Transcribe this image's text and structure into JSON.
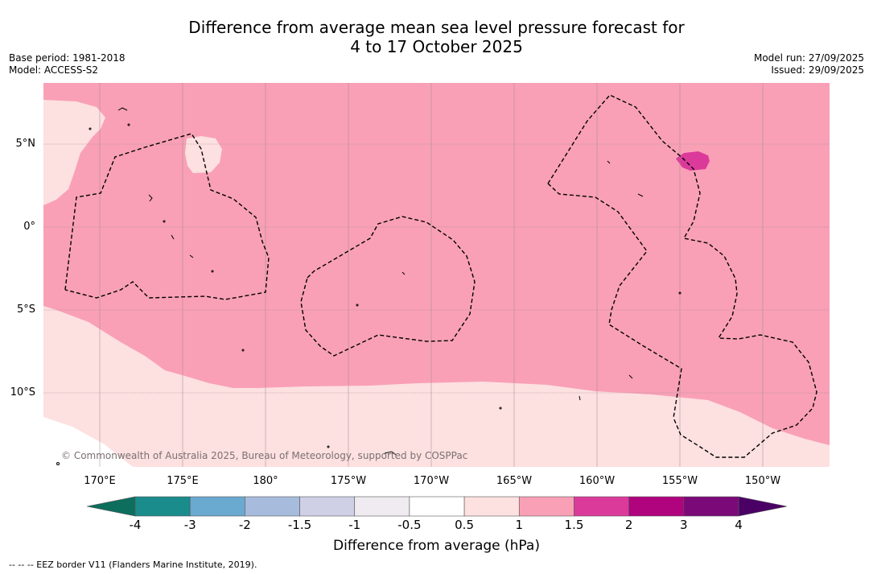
{
  "title": {
    "line1": "Difference from average mean sea level pressure forecast for",
    "line2": "4 to 17 October 2025"
  },
  "meta": {
    "base_period": "Base period: 1981-2018",
    "model": "Model: ACCESS-S2",
    "model_run": "Model run: 27/09/2025",
    "issued": "Issued: 29/09/2025"
  },
  "map": {
    "lat_labels": [
      "5°N",
      "0°",
      "5°S",
      "10°S"
    ],
    "lon_labels": [
      "170°E",
      "175°E",
      "180°",
      "175°W",
      "170°W",
      "165°W",
      "160°W",
      "155°W",
      "150°W"
    ],
    "copyright": "© Commonwealth of Australia 2025, Bureau of Meteorology, supported by COSPPac",
    "fill_regions": [
      {
        "range": "1 to 1.5",
        "color": "#f9a0b6"
      },
      {
        "range": "0.5 to 1",
        "color": "#fde0e0"
      },
      {
        "range": "1.5 to 2",
        "color": "#dc3a9b"
      },
      {
        "range": "-0.5 to 0.5",
        "color": "#ffffff"
      }
    ]
  },
  "colorbar": {
    "title": "Difference from average (hPa)",
    "ticks": [
      "-4",
      "-3",
      "-2",
      "-1.5",
      "-1",
      "-0.5",
      "0.5",
      "1",
      "1.5",
      "2",
      "3",
      "4"
    ],
    "colors": [
      "#1a8c8c",
      "#6aa9d0",
      "#a7bcdc",
      "#cfd0e6",
      "#efebf0",
      "#ffffff",
      "#fde0e0",
      "#f9a0b6",
      "#dc3a9b",
      "#b0037e",
      "#7b0a78"
    ],
    "under_color": "#0e6e5e",
    "over_color": "#4b0066"
  },
  "footer": {
    "eez": "--  --  -- EEZ border V11 (Flanders Marine Institute, 2019)."
  }
}
